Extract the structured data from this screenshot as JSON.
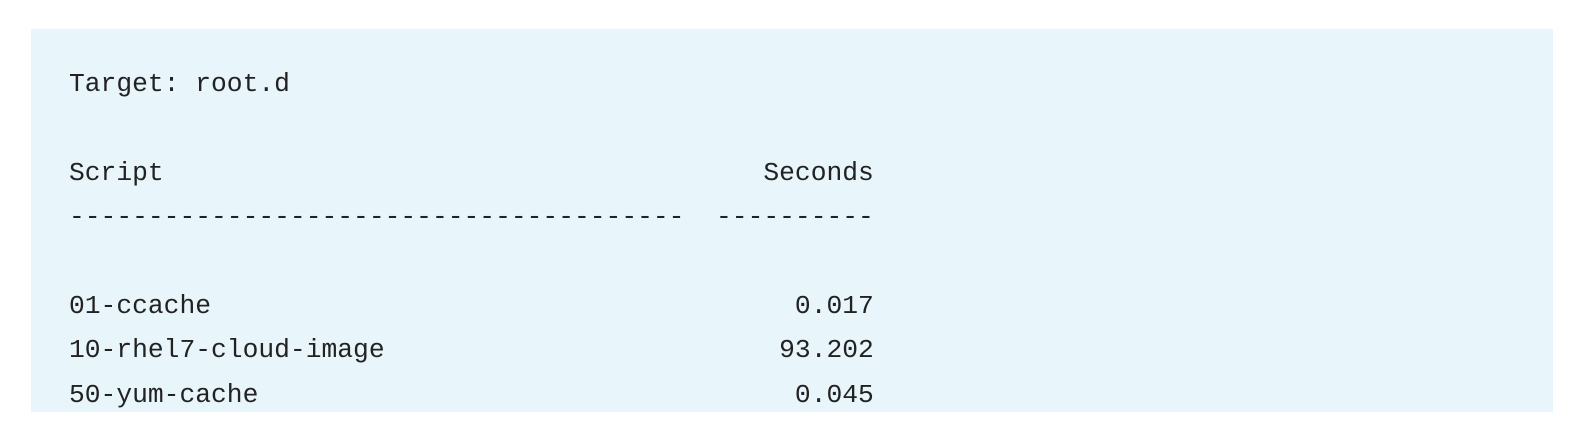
{
  "target_line": "Target: root.d",
  "table": {
    "header": {
      "script": "Script",
      "seconds": "Seconds"
    },
    "separator": {
      "script": "---------------------------------------",
      "seconds": "----------"
    },
    "rows": [
      {
        "script": "01-ccache",
        "seconds": "0.017"
      },
      {
        "script": "10-rhel7-cloud-image",
        "seconds": "93.202"
      },
      {
        "script": "50-yum-cache",
        "seconds": "0.045"
      }
    ]
  }
}
